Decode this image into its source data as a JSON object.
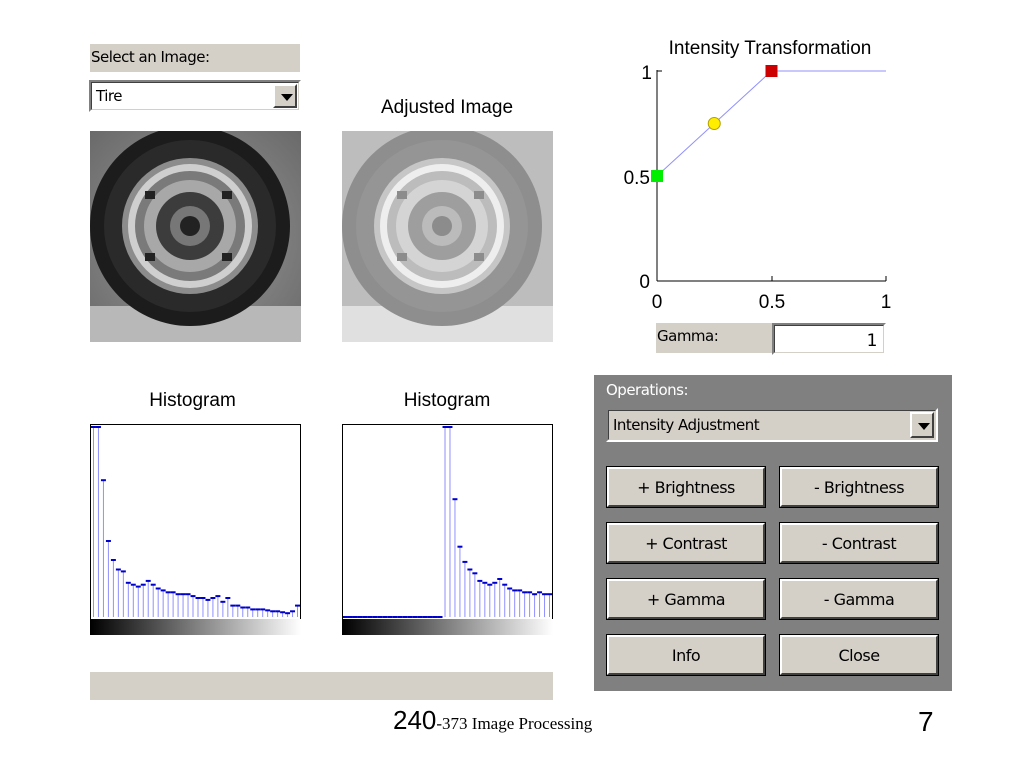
{
  "image_select": {
    "label": "Select an Image:",
    "selected": "Tire"
  },
  "adjusted_title": "Adjusted Image",
  "transform_chart": {
    "title": "Intensity Transformation",
    "y_ticks": [
      "1",
      "0.5",
      "0"
    ],
    "x_ticks": [
      "0",
      "0.5",
      "1"
    ]
  },
  "gamma": {
    "label": "Gamma:",
    "value": "1"
  },
  "histograms": {
    "original_title": "Histogram",
    "adjusted_title": "Histogram"
  },
  "operations": {
    "label": "Operations:",
    "selected": "Intensity Adjustment",
    "buttons": {
      "plus_brightness": "+ Brightness",
      "minus_brightness": "- Brightness",
      "plus_contrast": "+ Contrast",
      "minus_contrast": "- Contrast",
      "plus_gamma": "+ Gamma",
      "minus_gamma": "- Gamma",
      "info": "Info",
      "close": "Close"
    }
  },
  "footer": {
    "course_number": "240",
    "course_rest": "-373 Image Processing",
    "page_number": "7"
  },
  "chart_data": {
    "type": "line",
    "title": "Intensity Transformation",
    "x": [
      0,
      0.5,
      1
    ],
    "y": [
      0.5,
      1,
      1
    ],
    "control_points": [
      {
        "x": 0,
        "y": 0.5,
        "color": "#00ee00"
      },
      {
        "x": 0.25,
        "y": 0.75,
        "color": "#ffee00"
      },
      {
        "x": 0.5,
        "y": 1,
        "color": "#cc0000"
      }
    ],
    "xlim": [
      0,
      1
    ],
    "ylim": [
      0,
      1
    ],
    "line_color": "#9090ff"
  },
  "hist_original": [
    1,
    1,
    0.72,
    0.4,
    0.3,
    0.25,
    0.24,
    0.18,
    0.17,
    0.16,
    0.17,
    0.19,
    0.17,
    0.15,
    0.14,
    0.13,
    0.13,
    0.12,
    0.12,
    0.12,
    0.11,
    0.1,
    0.1,
    0.09,
    0.1,
    0.11,
    0.08,
    0.1,
    0.06,
    0.06,
    0.05,
    0.05,
    0.04,
    0.04,
    0.04,
    0.035,
    0.03,
    0.03,
    0.025,
    0.02,
    0.03,
    0.06
  ],
  "hist_adjusted": [
    0,
    0,
    0,
    0,
    0,
    0,
    0,
    0,
    0,
    0,
    0,
    0,
    0,
    0,
    0,
    0,
    0,
    0,
    0,
    0,
    1,
    1,
    0.62,
    0.37,
    0.29,
    0.25,
    0.23,
    0.19,
    0.18,
    0.17,
    0.18,
    0.2,
    0.17,
    0.15,
    0.14,
    0.14,
    0.13,
    0.13,
    0.12,
    0.13,
    0.12,
    0.12
  ],
  "colors": {
    "win_gray": "#d4d0c8",
    "panel_gray": "#808080",
    "hist_line": "#9090ff",
    "hist_cap": "#0000cc"
  }
}
